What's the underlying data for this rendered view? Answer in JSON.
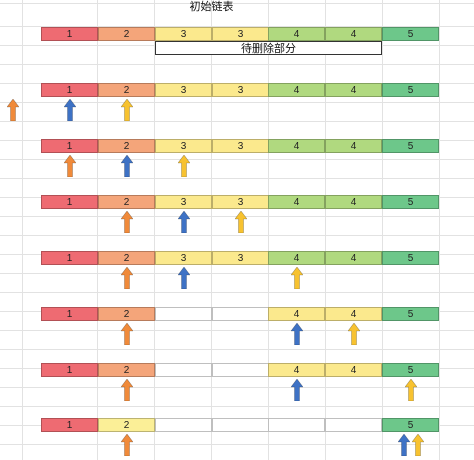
{
  "title": "初始链表",
  "note": "待删除部分",
  "colors": {
    "n1": "#ee6b72",
    "n2": "#f4a57a",
    "n2_yellow": "#fbef97",
    "n3": "#fbe98d",
    "n4": "#b0d97f",
    "n4_yellow": "#fbe98d",
    "n5": "#6dc78a",
    "empty": "#ffffff",
    "orange_arrow": "#f08a3a",
    "blue_arrow": "#3e72c5",
    "yellow_arrow": "#f7c230"
  },
  "rows": [
    {
      "cells": [
        {
          "label": "1",
          "color": "n1"
        },
        {
          "label": "2",
          "color": "n2"
        },
        {
          "label": "3",
          "color": "n3"
        },
        {
          "label": "3",
          "color": "n3"
        },
        {
          "label": "4",
          "color": "n4"
        },
        {
          "label": "4",
          "color": "n4"
        },
        {
          "label": "5",
          "color": "n5"
        }
      ],
      "arrows": []
    },
    {
      "cells": [
        {
          "label": "1",
          "color": "n1"
        },
        {
          "label": "2",
          "color": "n2"
        },
        {
          "label": "3",
          "color": "n3"
        },
        {
          "label": "3",
          "color": "n3"
        },
        {
          "label": "4",
          "color": "n4"
        },
        {
          "label": "4",
          "color": "n4"
        },
        {
          "label": "5",
          "color": "n5"
        }
      ],
      "arrows": [
        {
          "pos": "head",
          "color": "orange_arrow"
        },
        {
          "pos": 0,
          "color": "blue_arrow"
        },
        {
          "pos": 1,
          "color": "yellow_arrow"
        }
      ]
    },
    {
      "cells": [
        {
          "label": "1",
          "color": "n1"
        },
        {
          "label": "2",
          "color": "n2"
        },
        {
          "label": "3",
          "color": "n3"
        },
        {
          "label": "3",
          "color": "n3"
        },
        {
          "label": "4",
          "color": "n4"
        },
        {
          "label": "4",
          "color": "n4"
        },
        {
          "label": "5",
          "color": "n5"
        }
      ],
      "arrows": [
        {
          "pos": 0,
          "color": "orange_arrow"
        },
        {
          "pos": 1,
          "color": "blue_arrow"
        },
        {
          "pos": 2,
          "color": "yellow_arrow"
        }
      ]
    },
    {
      "cells": [
        {
          "label": "1",
          "color": "n1"
        },
        {
          "label": "2",
          "color": "n2"
        },
        {
          "label": "3",
          "color": "n3"
        },
        {
          "label": "3",
          "color": "n3"
        },
        {
          "label": "4",
          "color": "n4"
        },
        {
          "label": "4",
          "color": "n4"
        },
        {
          "label": "5",
          "color": "n5"
        }
      ],
      "arrows": [
        {
          "pos": 1,
          "color": "orange_arrow"
        },
        {
          "pos": 2,
          "color": "blue_arrow"
        },
        {
          "pos": 3,
          "color": "yellow_arrow"
        }
      ]
    },
    {
      "cells": [
        {
          "label": "1",
          "color": "n1"
        },
        {
          "label": "2",
          "color": "n2"
        },
        {
          "label": "3",
          "color": "n3"
        },
        {
          "label": "3",
          "color": "n3"
        },
        {
          "label": "4",
          "color": "n4"
        },
        {
          "label": "4",
          "color": "n4"
        },
        {
          "label": "5",
          "color": "n5"
        }
      ],
      "arrows": [
        {
          "pos": 1,
          "color": "orange_arrow"
        },
        {
          "pos": 2,
          "color": "blue_arrow"
        },
        {
          "pos": 4,
          "color": "yellow_arrow"
        }
      ]
    },
    {
      "cells": [
        {
          "label": "1",
          "color": "n1"
        },
        {
          "label": "2",
          "color": "n2"
        },
        {
          "label": "",
          "color": "empty"
        },
        {
          "label": "",
          "color": "empty"
        },
        {
          "label": "4",
          "color": "n4_yellow"
        },
        {
          "label": "4",
          "color": "n4_yellow"
        },
        {
          "label": "5",
          "color": "n5"
        }
      ],
      "arrows": [
        {
          "pos": 1,
          "color": "orange_arrow"
        },
        {
          "pos": 4,
          "color": "blue_arrow"
        },
        {
          "pos": 5,
          "color": "yellow_arrow"
        }
      ]
    },
    {
      "cells": [
        {
          "label": "1",
          "color": "n1"
        },
        {
          "label": "2",
          "color": "n2"
        },
        {
          "label": "",
          "color": "empty"
        },
        {
          "label": "",
          "color": "empty"
        },
        {
          "label": "4",
          "color": "n4_yellow"
        },
        {
          "label": "4",
          "color": "n4_yellow"
        },
        {
          "label": "5",
          "color": "n5"
        }
      ],
      "arrows": [
        {
          "pos": 1,
          "color": "orange_arrow"
        },
        {
          "pos": 4,
          "color": "blue_arrow"
        },
        {
          "pos": 6,
          "color": "yellow_arrow"
        }
      ]
    },
    {
      "cells": [
        {
          "label": "1",
          "color": "n1"
        },
        {
          "label": "2",
          "color": "n2_yellow"
        },
        {
          "label": "",
          "color": "empty"
        },
        {
          "label": "",
          "color": "empty"
        },
        {
          "label": "",
          "color": "empty"
        },
        {
          "label": "",
          "color": "empty"
        },
        {
          "label": "5",
          "color": "n5"
        }
      ],
      "arrows": [
        {
          "pos": 1,
          "color": "orange_arrow"
        },
        {
          "pos": "6a",
          "color": "blue_arrow"
        },
        {
          "pos": "6b",
          "color": "yellow_arrow"
        }
      ]
    }
  ]
}
